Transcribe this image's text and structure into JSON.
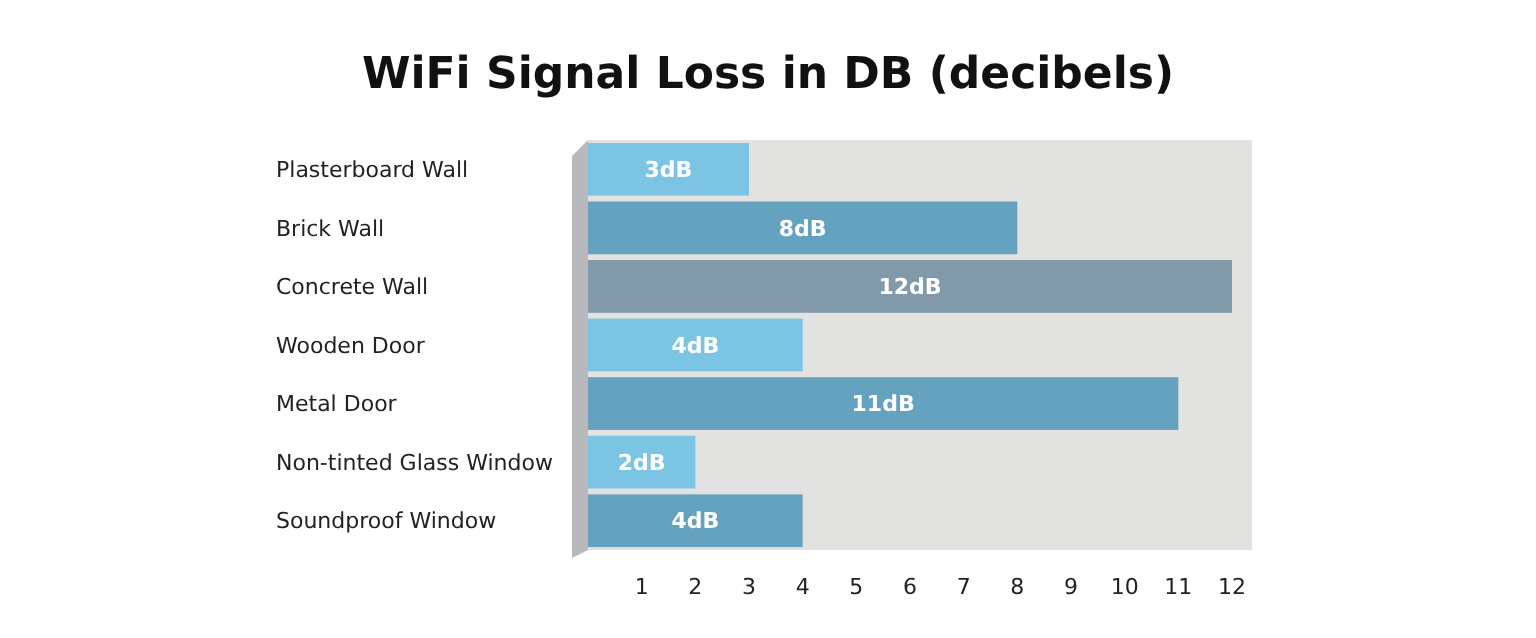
{
  "chart_data": {
    "type": "bar",
    "orientation": "horizontal",
    "title": "WiFi Signal Loss in DB (decibels)",
    "categories": [
      "Plasterboard Wall",
      "Brick Wall",
      "Concrete Wall",
      "Wooden Door",
      "Metal Door",
      "Non-tinted Glass Window",
      "Soundproof Window"
    ],
    "values": [
      3,
      8,
      12,
      4,
      11,
      2,
      4
    ],
    "colors": [
      "#7cc4e4",
      "#64a2bf",
      "#8199a8",
      "#7cc4e4",
      "#64a2bf",
      "#7cc4e4",
      "#64a2bf"
    ],
    "value_labels": [
      "3dB",
      "8dB",
      "12dB",
      "4dB",
      "11dB",
      "2dB",
      "4dB"
    ],
    "xlim": [
      0,
      12
    ],
    "xticks": [
      1,
      2,
      3,
      4,
      5,
      6,
      7,
      8,
      9,
      10,
      11,
      12
    ],
    "grid": false
  }
}
